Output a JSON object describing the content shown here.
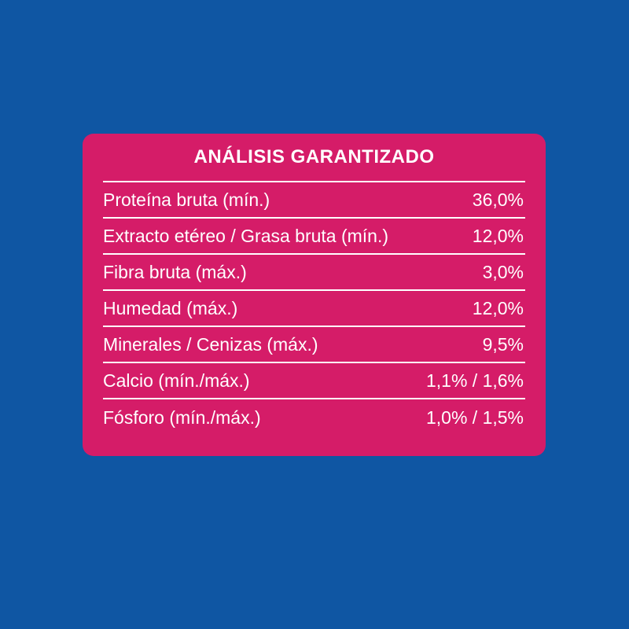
{
  "colors": {
    "background": "#0f56a3",
    "panel": "#d51c68",
    "text": "#ffffff"
  },
  "table": {
    "title": "ANÁLISIS GARANTIZADO",
    "rows": [
      {
        "label": "Proteína bruta (mín.)",
        "value": "36,0%"
      },
      {
        "label": "Extracto etéreo / Grasa bruta (mín.)",
        "value": "12,0%"
      },
      {
        "label": "Fibra bruta (máx.)",
        "value": "3,0%"
      },
      {
        "label": "Humedad (máx.)",
        "value": "12,0%"
      },
      {
        "label": "Minerales / Cenizas (máx.)",
        "value": "9,5%"
      },
      {
        "label": "Calcio (mín./máx.)",
        "value": "1,1% / 1,6%"
      },
      {
        "label": "Fósforo (mín./máx.)",
        "value": "1,0% / 1,5%"
      }
    ]
  }
}
